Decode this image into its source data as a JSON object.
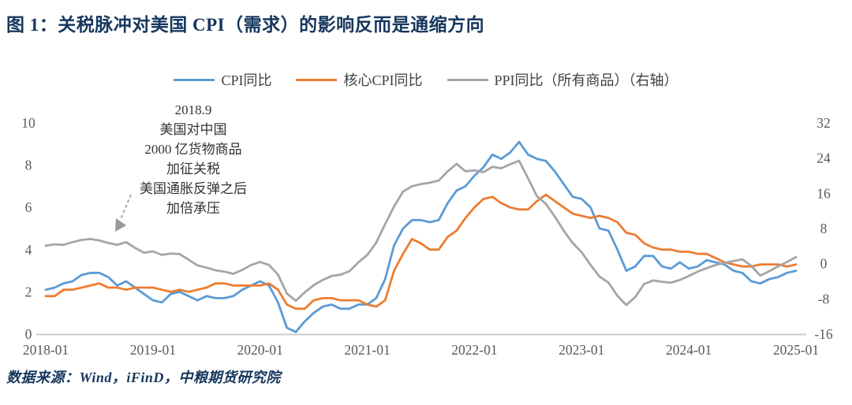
{
  "title": "图 1：关税脉冲对美国 CPI（需求）的影响反而是通缩方向",
  "source": "数据来源：Wind，iFinD，中粮期货研究院",
  "annotation": {
    "lines": [
      "2018.9",
      "美国对中国",
      "2000 亿货物商品",
      "加征关税",
      "美国通胀反弹之后",
      "加倍承压"
    ]
  },
  "colors": {
    "title": "#17375E",
    "axis_text": "#595959",
    "axis_line": "#CCCCCC",
    "arrow": "#999999"
  },
  "chart_data": {
    "type": "line",
    "x_monthly_start": "2018-01",
    "x_monthly_end": "2025-01",
    "x_tick_labels": [
      "2018-01",
      "2019-01",
      "2020-01",
      "2021-01",
      "2022-01",
      "2023-01",
      "2024-01",
      "2025-01"
    ],
    "left_axis": {
      "min": 0,
      "max": 10,
      "ticks": [
        0,
        2,
        4,
        6,
        8,
        10
      ]
    },
    "right_axis": {
      "min": -16,
      "max": 32,
      "ticks": [
        -16,
        -8,
        0,
        8,
        16,
        24,
        32
      ]
    },
    "grid": false,
    "legend_position": "top-center",
    "series": [
      {
        "name": "CPI同比",
        "axis": "left",
        "color": "#5B9BD5",
        "values": [
          2.1,
          2.2,
          2.4,
          2.5,
          2.8,
          2.9,
          2.9,
          2.7,
          2.3,
          2.5,
          2.2,
          1.9,
          1.6,
          1.5,
          1.9,
          2.0,
          1.8,
          1.6,
          1.8,
          1.7,
          1.7,
          1.8,
          2.1,
          2.3,
          2.5,
          2.3,
          1.5,
          0.3,
          0.1,
          0.6,
          1.0,
          1.3,
          1.4,
          1.2,
          1.2,
          1.4,
          1.4,
          1.7,
          2.6,
          4.2,
          5.0,
          5.4,
          5.4,
          5.3,
          5.4,
          6.2,
          6.8,
          7.0,
          7.5,
          7.9,
          8.5,
          8.3,
          8.6,
          9.1,
          8.5,
          8.3,
          8.2,
          7.7,
          7.1,
          6.5,
          6.4,
          6.0,
          5.0,
          4.9,
          4.0,
          3.0,
          3.2,
          3.7,
          3.7,
          3.2,
          3.1,
          3.4,
          3.1,
          3.2,
          3.5,
          3.4,
          3.3,
          3.0,
          2.9,
          2.5,
          2.4,
          2.6,
          2.7,
          2.9,
          3.0
        ]
      },
      {
        "name": "核心CPI同比",
        "axis": "left",
        "color": "#ED7D31",
        "values": [
          1.8,
          1.8,
          2.1,
          2.1,
          2.2,
          2.3,
          2.4,
          2.2,
          2.2,
          2.1,
          2.2,
          2.2,
          2.2,
          2.1,
          2.0,
          2.1,
          2.0,
          2.1,
          2.2,
          2.4,
          2.4,
          2.3,
          2.3,
          2.3,
          2.3,
          2.4,
          2.1,
          1.4,
          1.2,
          1.2,
          1.6,
          1.7,
          1.7,
          1.6,
          1.6,
          1.6,
          1.4,
          1.3,
          1.6,
          3.0,
          3.8,
          4.5,
          4.3,
          4.0,
          4.0,
          4.6,
          4.9,
          5.5,
          6.0,
          6.4,
          6.5,
          6.2,
          6.0,
          5.9,
          5.9,
          6.3,
          6.6,
          6.3,
          6.0,
          5.7,
          5.6,
          5.5,
          5.6,
          5.5,
          5.3,
          4.8,
          4.7,
          4.3,
          4.1,
          4.0,
          4.0,
          3.9,
          3.9,
          3.8,
          3.8,
          3.6,
          3.4,
          3.3,
          3.2,
          3.2,
          3.3,
          3.3,
          3.3,
          3.2,
          3.3
        ]
      },
      {
        "name": "PPI同比（所有商品）（右轴）",
        "axis": "right",
        "color": "#A5A5A5",
        "values": [
          4.1,
          4.4,
          4.3,
          4.9,
          5.4,
          5.6,
          5.3,
          4.7,
          4.3,
          4.9,
          3.6,
          2.5,
          2.8,
          2.0,
          2.3,
          2.2,
          0.9,
          -0.4,
          -0.9,
          -1.5,
          -1.8,
          -2.3,
          -1.4,
          -0.3,
          0.4,
          -0.3,
          -2.5,
          -6.8,
          -8.4,
          -6.5,
          -4.9,
          -3.7,
          -2.8,
          -2.5,
          -1.7,
          0.3,
          2.0,
          4.8,
          9.0,
          13.0,
          16.4,
          17.6,
          18.1,
          18.4,
          18.9,
          21.0,
          22.7,
          21.0,
          21.2,
          20.8,
          22.0,
          21.7,
          22.6,
          23.4,
          19.4,
          15.3,
          13.6,
          10.7,
          7.5,
          4.7,
          2.6,
          -0.3,
          -2.9,
          -4.3,
          -7.3,
          -9.4,
          -7.6,
          -4.6,
          -3.8,
          -4.1,
          -4.3,
          -3.7,
          -2.8,
          -1.8,
          -1.0,
          -0.3,
          0.2,
          0.6,
          1.0,
          -0.5,
          -2.7,
          -1.7,
          -0.6,
          0.4,
          1.5
        ]
      }
    ]
  }
}
